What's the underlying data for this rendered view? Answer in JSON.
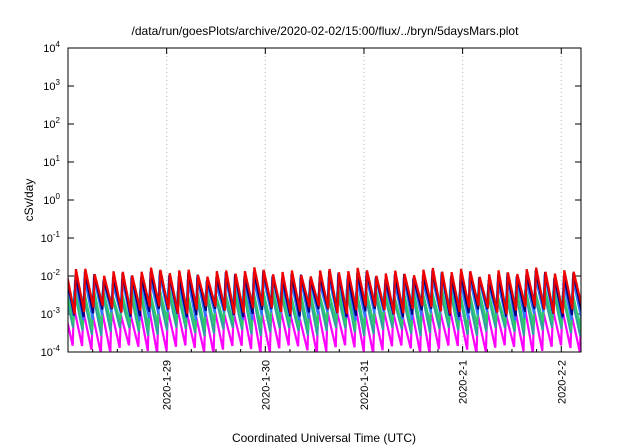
{
  "chart_data": {
    "type": "line",
    "title": "/data/run/goesPlots/archive/2020-02-02/15:00/flux/../bryn/5daysMars.plot",
    "xlabel": "Coordinated Universal Time (UTC)",
    "ylabel": "cSv/day",
    "yscale": "log",
    "ylim": [
      0.0001,
      10000
    ],
    "ytick_exponents": [
      "4",
      "3",
      "2",
      "1",
      "0",
      "-1",
      "-2",
      "-3",
      "-4"
    ],
    "xlim_days": [
      0,
      5.2
    ],
    "xticks": [
      {
        "label": "2020-1-29",
        "day": 1.0
      },
      {
        "label": "2020-1-30",
        "day": 2.0
      },
      {
        "label": "2020-1-31",
        "day": 3.0
      },
      {
        "label": "2020-2-1",
        "day": 4.0
      },
      {
        "label": "2020-2-2",
        "day": 5.0
      }
    ],
    "grid": true,
    "legend": "none",
    "sawtooth": {
      "period_days": 0.0952,
      "rise_fraction": 0.13
    },
    "series": [
      {
        "color": "#ff00ff",
        "peak": 0.0012,
        "trough": 0.00012
      },
      {
        "color": "#33a0a0",
        "peak": 0.0035,
        "trough": 0.00035
      },
      {
        "color": "#2ec870",
        "peak": 0.0045,
        "trough": 0.0005
      },
      {
        "color": "#3377ff",
        "peak": 0.0085,
        "trough": 0.0009
      },
      {
        "color": "#000080",
        "peak": 0.011,
        "trough": 0.0011
      },
      {
        "color": "#ee0000",
        "peak": 0.013,
        "trough": 0.0013
      }
    ]
  }
}
